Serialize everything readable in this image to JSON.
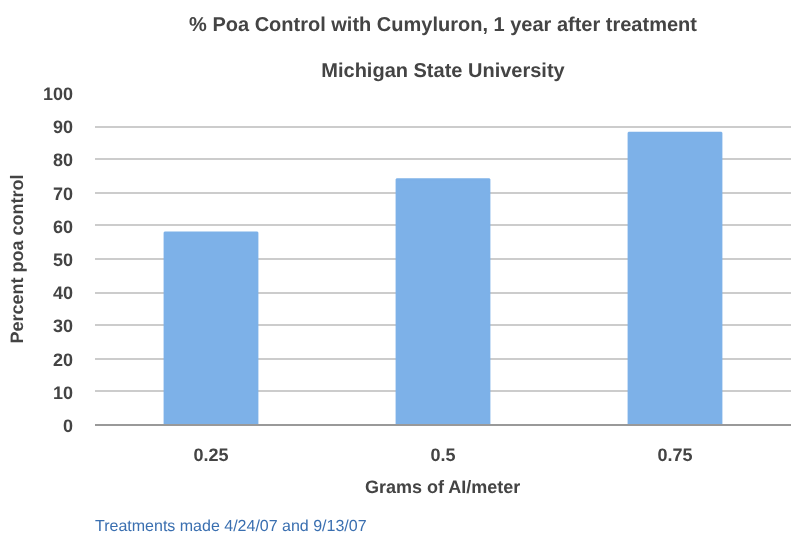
{
  "chart_data": {
    "type": "bar",
    "title": "% Poa Control with Cumyluron, 1 year after treatment",
    "subtitle": "Michigan State University",
    "categories": [
      "0.25",
      "0.5",
      "0.75"
    ],
    "values": [
      58,
      74,
      88
    ],
    "color": "#7db1e8",
    "xlabel": "Grams of AI/meter",
    "ylabel": "Percent poa control",
    "ylim": [
      0,
      100
    ],
    "yticks": [
      0,
      10,
      20,
      30,
      40,
      50,
      60,
      70,
      80,
      90,
      100
    ],
    "grid": "y",
    "annotations": [
      "Treatments made 4/24/07 and 9/13/07"
    ]
  }
}
